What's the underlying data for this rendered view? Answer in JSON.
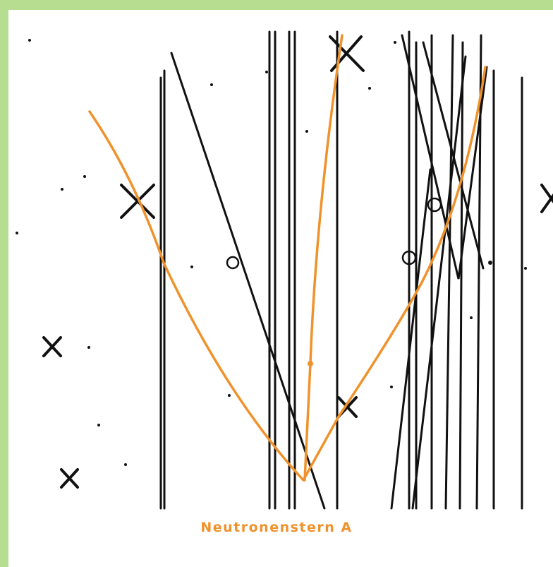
{
  "caption": "Neutronenstern A"
}
